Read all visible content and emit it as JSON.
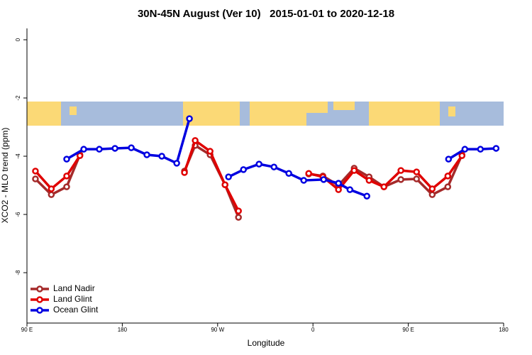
{
  "chart_data": {
    "type": "line",
    "title": "30N-45N August (Ver 10)   2015-01-01 to 2020-12-18",
    "x_label": "Longitude",
    "y_label": "XCO2 - MLO trend (ppm)",
    "xlim": [
      90,
      540
    ],
    "ylim": [
      -9.73,
      0.39
    ],
    "xticks": [
      {
        "value": 90,
        "label": "90 E"
      },
      180,
      {
        "value": 270,
        "label": "90 W"
      },
      {
        "value": 360,
        "label": "0"
      },
      {
        "value": 450,
        "label": "90 E"
      },
      {
        "value": 540,
        "label": "180"
      }
    ],
    "yticks": [
      0,
      -2,
      -4,
      -6,
      -8
    ],
    "legend": "bottom-left",
    "series": [
      {
        "name": "Land Nadir",
        "color": "#a52a2a",
        "x": [
          98,
          113,
          127.5,
          140,
          190,
          238.7,
          248.8,
          262.9,
          277,
          289.7,
          320,
          356,
          369.4,
          384.1,
          398.9,
          413,
          427,
          443,
          457.8,
          472.6,
          487.3,
          500.7
        ],
        "values": [
          -4.78,
          -5.32,
          -5.05,
          -3.95,
          null,
          -4.51,
          -3.63,
          -3.95,
          -4.98,
          -6.1,
          null,
          -4.61,
          -4.68,
          -5.0,
          -4.41,
          -4.71,
          -5.05,
          -4.8,
          -4.78,
          -5.32,
          -5.05,
          -3.95
        ]
      },
      {
        "name": "Land Glint",
        "color": "#e00000",
        "x": [
          98,
          113,
          127.5,
          140,
          190,
          238.7,
          248.8,
          262.9,
          277,
          289.7,
          320,
          356,
          369.4,
          384.1,
          398.9,
          413,
          427,
          443,
          457.8,
          472.6,
          487.3,
          500.7
        ],
        "values": [
          -4.51,
          -5.12,
          -4.68,
          -3.98,
          null,
          -4.56,
          -3.46,
          -3.83,
          -4.98,
          -5.88,
          null,
          -4.59,
          -4.71,
          -5.15,
          -4.49,
          -4.83,
          -5.05,
          -4.49,
          -4.54,
          -5.12,
          -4.68,
          -3.98
        ]
      },
      {
        "name": "Ocean Glint",
        "color": "#0000e0",
        "x": [
          127.5,
          143.6,
          158.3,
          173.1,
          188.5,
          203.2,
          217.3,
          231.4,
          243.4,
          260,
          280.3,
          294.4,
          309.1,
          323.2,
          337.2,
          351.3,
          370.1,
          384.1,
          394.9,
          410.9,
          450,
          488,
          503.4,
          518.1,
          532.9
        ],
        "values": [
          -4.1,
          -3.76,
          -3.76,
          -3.73,
          -3.71,
          -3.95,
          -4.0,
          -4.24,
          -2.71,
          null,
          -4.71,
          -4.46,
          -4.27,
          -4.37,
          -4.59,
          -4.83,
          -4.8,
          -4.93,
          -5.15,
          -5.37,
          null,
          -4.1,
          -3.76,
          -3.76,
          -3.73
        ]
      }
    ]
  }
}
